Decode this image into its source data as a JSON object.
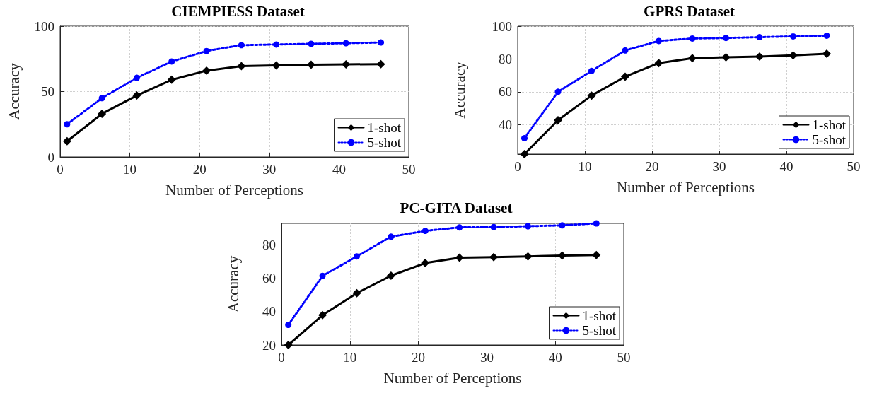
{
  "chart_data": [
    {
      "type": "line",
      "title": "CIEMPIESS Dataset",
      "xlabel": "Number of Perceptions",
      "ylabel": "Accuracy",
      "x": [
        1,
        6,
        11,
        16,
        21,
        26,
        31,
        36,
        41,
        46
      ],
      "xlim": [
        0,
        50
      ],
      "xticks": [
        0,
        10,
        20,
        30,
        40,
        50
      ],
      "ylim": [
        0,
        100
      ],
      "yticks": [
        0,
        50,
        100
      ],
      "grid": true,
      "legend": "bottom right",
      "series": [
        {
          "name": "1-shot",
          "color": "#000000",
          "marker": "diamond",
          "line_style": "solid",
          "values": [
            12,
            33,
            47,
            59,
            66,
            69.5,
            70,
            70.5,
            70.8,
            71
          ]
        },
        {
          "name": "5-shot",
          "color": "#0000ff",
          "marker": "circle",
          "line_style": "dotted",
          "values": [
            25,
            45,
            60.5,
            73,
            81,
            85.5,
            86,
            86.5,
            87,
            87.5
          ]
        }
      ]
    },
    {
      "type": "line",
      "title": "GPRS Dataset",
      "xlabel": "Number of Perceptions",
      "ylabel": "Accuracy",
      "x": [
        1,
        6,
        11,
        16,
        21,
        26,
        31,
        36,
        41,
        46
      ],
      "xlim": [
        0,
        50
      ],
      "xticks": [
        0,
        10,
        20,
        30,
        40,
        50
      ],
      "ylim": [
        22,
        100
      ],
      "yticks": [
        40,
        60,
        80,
        100
      ],
      "grid": true,
      "legend": "bottom right",
      "series": [
        {
          "name": "1-shot",
          "color": "#000000",
          "marker": "diamond",
          "line_style": "solid",
          "values": [
            22,
            42.7,
            57.7,
            69.2,
            77.5,
            80.5,
            81,
            81.5,
            82.2,
            83.2
          ]
        },
        {
          "name": "5-shot",
          "color": "#0000ff",
          "marker": "circle",
          "line_style": "dotted",
          "values": [
            31.7,
            60,
            72.7,
            85.2,
            91,
            92.5,
            92.8,
            93.3,
            93.8,
            94.2
          ]
        }
      ]
    },
    {
      "type": "line",
      "title": "PC-GITA Dataset",
      "xlabel": "Number of Perceptions",
      "ylabel": "Accuracy",
      "x": [
        1,
        6,
        11,
        16,
        21,
        26,
        31,
        36,
        41,
        46
      ],
      "xlim": [
        0,
        50
      ],
      "xticks": [
        0,
        10,
        20,
        30,
        40,
        50
      ],
      "ylim": [
        20,
        93
      ],
      "yticks": [
        20,
        40,
        60,
        80
      ],
      "grid": true,
      "legend": "bottom right",
      "series": [
        {
          "name": "1-shot",
          "color": "#000000",
          "marker": "diamond",
          "line_style": "solid",
          "values": [
            20,
            37.9,
            51.1,
            61.6,
            69.2,
            72.4,
            72.7,
            73.2,
            73.7,
            74
          ]
        },
        {
          "name": "5-shot",
          "color": "#0000ff",
          "marker": "circle",
          "line_style": "dotted",
          "values": [
            32.1,
            61.5,
            73.2,
            85,
            88.5,
            90.6,
            90.8,
            91.3,
            91.8,
            93
          ]
        }
      ]
    }
  ]
}
